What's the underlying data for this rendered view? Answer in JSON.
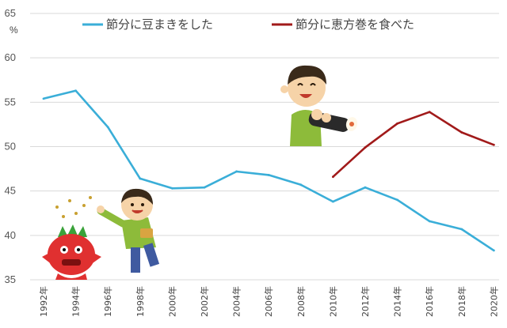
{
  "chart_data": {
    "type": "line",
    "x": [
      "1992年",
      "1994年",
      "1996年",
      "1998年",
      "2000年",
      "2002年",
      "2004年",
      "2006年",
      "2008年",
      "2010年",
      "2012年",
      "2014年",
      "2016年",
      "2018年",
      "2020年"
    ],
    "series": [
      {
        "name": "節分に豆まきをした",
        "color": "#3aaed8",
        "values": [
          55.4,
          56.3,
          52.2,
          46.4,
          45.3,
          45.4,
          47.2,
          46.8,
          45.7,
          43.8,
          45.4,
          44.0,
          41.6,
          40.7,
          38.3
        ]
      },
      {
        "name": "節分に恵方巻を食べた",
        "color": "#a11a1a",
        "values": [
          null,
          null,
          null,
          null,
          null,
          null,
          null,
          null,
          null,
          46.6,
          49.9,
          52.6,
          53.9,
          51.6,
          50.2
        ]
      }
    ],
    "y_ticks": [
      35,
      40,
      45,
      50,
      55,
      60,
      65
    ],
    "ylim": [
      35,
      65
    ],
    "ylabel": "%",
    "grid": true,
    "legend": "top",
    "illustrations": [
      "red-oni-icon",
      "boy-throwing-beans-icon",
      "boy-eating-ehomaki-icon"
    ]
  }
}
